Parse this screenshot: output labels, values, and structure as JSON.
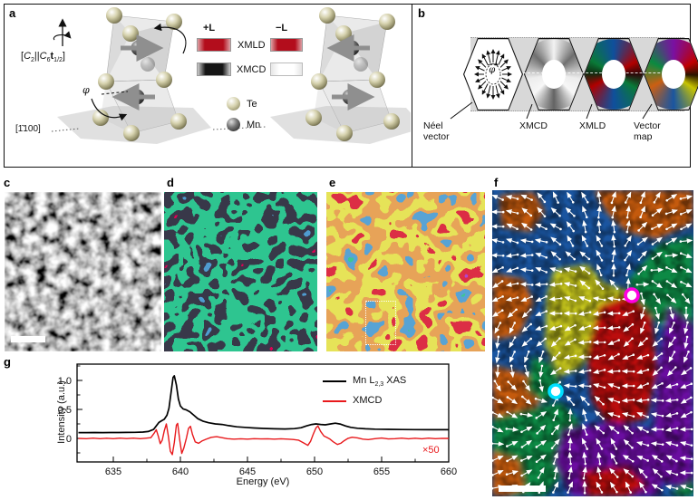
{
  "panel_labels": {
    "a": "a",
    "b": "b",
    "c": "c",
    "d": "d",
    "e": "e",
    "f": "f",
    "g": "g"
  },
  "panel_a": {
    "sym": {
      "open": "[",
      "c1": "C",
      "sub1": "2",
      "par": "||",
      "c2": "C",
      "sub2": "6",
      "t": "t",
      "sub3": "1/2",
      "close": "]"
    },
    "phi": "φ",
    "miller_label": "[1̄100]",
    "legend": {
      "plus": "+L",
      "minus": "−L",
      "row1": "XMLD",
      "row2": "XMCD",
      "te": "Te",
      "mn": "Mn"
    },
    "colors": {
      "xmld_bar": "#b30d1c",
      "xmcd_plus": "#161616",
      "xmcd_minus": "#ffffff",
      "te_sphere": "#d6d2ae",
      "mn_sphere": "#565656",
      "spin_arrow": "#8f8f8f"
    }
  },
  "panel_b": {
    "phi": "φ",
    "items": [
      {
        "line1": "Néel",
        "line2": "vector"
      },
      {
        "line1": "XMCD",
        "line2": ""
      },
      {
        "line1": "XMLD",
        "line2": ""
      },
      {
        "line1": "Vector",
        "line2": "map"
      }
    ],
    "vector_palette": [
      "#7a10a2",
      "#c00000",
      "#c8c400",
      "#1a55a0",
      "#cc5f12",
      "#0a8a40"
    ]
  },
  "panel_f": {
    "markers": [
      {
        "name": "vortex-marker-magenta",
        "color": "#ff00e1"
      },
      {
        "name": "vortex-marker-cyan",
        "color": "#00e0ff"
      }
    ],
    "domain_palette": [
      "#1a55a0",
      "#c45a10",
      "#0a8a44",
      "#c2c21a",
      "#bb0b0b",
      "#6b10a0"
    ]
  },
  "chart_data": {
    "type": "line",
    "xlabel": "Energy (eV)",
    "ylabel": "Intensity (a.u.)",
    "xlim": [
      632.4,
      660
    ],
    "ylim": [
      -0.41,
      1.28
    ],
    "grid": false,
    "legend_position": "top-right",
    "xticks": [
      635,
      640,
      645,
      650,
      655,
      660
    ],
    "xticks_minor": [
      637.5,
      642.5,
      647.5,
      652.5,
      657.5
    ],
    "yticks": [
      {
        "v": 0,
        "label": "0"
      },
      {
        "v": 0.5,
        "label": "0.5"
      },
      {
        "v": 1,
        "label": "1.0"
      }
    ],
    "yticks_minor": [
      -0.25,
      0.25,
      0.75,
      1.25
    ],
    "legend": [
      {
        "pre": "Mn L",
        "sub": "2,3",
        "post": " XAS",
        "color": "#000000"
      },
      {
        "pre": "XMCD",
        "sub": "",
        "post": "",
        "color": "#e8191c"
      }
    ],
    "multiplier_note": "×50",
    "series": [
      {
        "name": "Mn L2,3 XAS",
        "color": "#000000",
        "points": [
          [
            632.4,
            0.1
          ],
          [
            633,
            0.1
          ],
          [
            633.6,
            0.101
          ],
          [
            634.2,
            0.1
          ],
          [
            634.8,
            0.101
          ],
          [
            635.4,
            0.102
          ],
          [
            636,
            0.103
          ],
          [
            636.6,
            0.105
          ],
          [
            637.2,
            0.109
          ],
          [
            637.6,
            0.118
          ],
          [
            638,
            0.155
          ],
          [
            638.2,
            0.215
          ],
          [
            638.4,
            0.275
          ],
          [
            638.6,
            0.305
          ],
          [
            638.8,
            0.33
          ],
          [
            639,
            0.4
          ],
          [
            639.15,
            0.52
          ],
          [
            639.3,
            0.78
          ],
          [
            639.45,
            1.05
          ],
          [
            639.55,
            1.08
          ],
          [
            639.7,
            0.92
          ],
          [
            639.85,
            0.68
          ],
          [
            640,
            0.56
          ],
          [
            640.2,
            0.51
          ],
          [
            640.45,
            0.49
          ],
          [
            640.7,
            0.46
          ],
          [
            641,
            0.4
          ],
          [
            641.3,
            0.34
          ],
          [
            641.7,
            0.295
          ],
          [
            642.1,
            0.27
          ],
          [
            642.6,
            0.25
          ],
          [
            643.1,
            0.24
          ],
          [
            643.6,
            0.22
          ],
          [
            644.2,
            0.2
          ],
          [
            644.8,
            0.19
          ],
          [
            645.5,
            0.18
          ],
          [
            646.2,
            0.172
          ],
          [
            647,
            0.166
          ],
          [
            647.8,
            0.163
          ],
          [
            648.5,
            0.168
          ],
          [
            649,
            0.185
          ],
          [
            649.4,
            0.215
          ],
          [
            649.8,
            0.24
          ],
          [
            650.1,
            0.25
          ],
          [
            650.45,
            0.24
          ],
          [
            650.8,
            0.235
          ],
          [
            651.2,
            0.25
          ],
          [
            651.55,
            0.262
          ],
          [
            651.9,
            0.248
          ],
          [
            652.3,
            0.215
          ],
          [
            652.7,
            0.19
          ],
          [
            653.2,
            0.175
          ],
          [
            653.8,
            0.166
          ],
          [
            654.5,
            0.16
          ],
          [
            655.5,
            0.156
          ],
          [
            656.5,
            0.153
          ],
          [
            657.5,
            0.151
          ],
          [
            658.5,
            0.15
          ],
          [
            659.5,
            0.15
          ],
          [
            660,
            0.15
          ]
        ]
      },
      {
        "name": "XMCD",
        "color": "#e8191c",
        "points": [
          [
            632.4,
            0
          ],
          [
            633,
            -0.005
          ],
          [
            633.5,
            0.004
          ],
          [
            634,
            -0.004
          ],
          [
            634.5,
            0.003
          ],
          [
            635,
            -0.004
          ],
          [
            635.5,
            0.004
          ],
          [
            636,
            -0.003
          ],
          [
            636.5,
            0.004
          ],
          [
            637,
            -0.004
          ],
          [
            637.4,
            0.003
          ],
          [
            637.8,
            0.012
          ],
          [
            638.05,
            0.09
          ],
          [
            638.2,
            0.15
          ],
          [
            638.35,
            0.04
          ],
          [
            638.5,
            -0.09
          ],
          [
            638.65,
            -0.03
          ],
          [
            638.8,
            0.13
          ],
          [
            638.95,
            0.25
          ],
          [
            639.1,
            0.04
          ],
          [
            639.25,
            -0.22
          ],
          [
            639.4,
            -0.28
          ],
          [
            639.55,
            -0.07
          ],
          [
            639.7,
            0.23
          ],
          [
            639.8,
            0.26
          ],
          [
            639.95,
            -0.03
          ],
          [
            640.1,
            -0.26
          ],
          [
            640.25,
            -0.17
          ],
          [
            640.45,
            0.01
          ],
          [
            640.6,
            0.17
          ],
          [
            640.75,
            0.21
          ],
          [
            640.9,
            0.07
          ],
          [
            641.1,
            -0.06
          ],
          [
            641.35,
            -0.085
          ],
          [
            641.6,
            -0.045
          ],
          [
            641.9,
            -0.015
          ],
          [
            642.3,
            0.018
          ],
          [
            642.7,
            0.03
          ],
          [
            643.1,
            0.012
          ],
          [
            643.5,
            -0.005
          ],
          [
            644,
            -0.012
          ],
          [
            644.5,
            -0.006
          ],
          [
            645,
            -0.012
          ],
          [
            645.5,
            -0.005
          ],
          [
            646,
            -0.01
          ],
          [
            646.5,
            -0.007
          ],
          [
            647,
            -0.012
          ],
          [
            647.5,
            -0.007
          ],
          [
            648,
            -0.012
          ],
          [
            648.4,
            -0.018
          ],
          [
            648.8,
            -0.03
          ],
          [
            649.2,
            -0.08
          ],
          [
            649.5,
            -0.12
          ],
          [
            649.7,
            -0.05
          ],
          [
            649.9,
            0.07
          ],
          [
            650.1,
            0.18
          ],
          [
            650.25,
            0.215
          ],
          [
            650.45,
            0.12
          ],
          [
            650.7,
            0.04
          ],
          [
            650.9,
            0.018
          ],
          [
            651.15,
            -0.012
          ],
          [
            651.4,
            -0.06
          ],
          [
            651.7,
            -0.105
          ],
          [
            651.95,
            -0.085
          ],
          [
            652.2,
            -0.04
          ],
          [
            652.5,
            0.002
          ],
          [
            652.8,
            0.02
          ],
          [
            653.2,
            0.01
          ],
          [
            653.6,
            -0.012
          ],
          [
            654,
            -0.02
          ],
          [
            654.5,
            -0.004
          ],
          [
            655,
            0.006
          ],
          [
            655.5,
            -0.01
          ],
          [
            656,
            -0.004
          ],
          [
            656.5,
            0.005
          ],
          [
            657,
            -0.007
          ],
          [
            657.5,
            0.003
          ],
          [
            658,
            -0.006
          ],
          [
            658.5,
            0.004
          ],
          [
            659,
            -0.005
          ],
          [
            659.5,
            0.002
          ],
          [
            660,
            0
          ]
        ]
      }
    ]
  }
}
